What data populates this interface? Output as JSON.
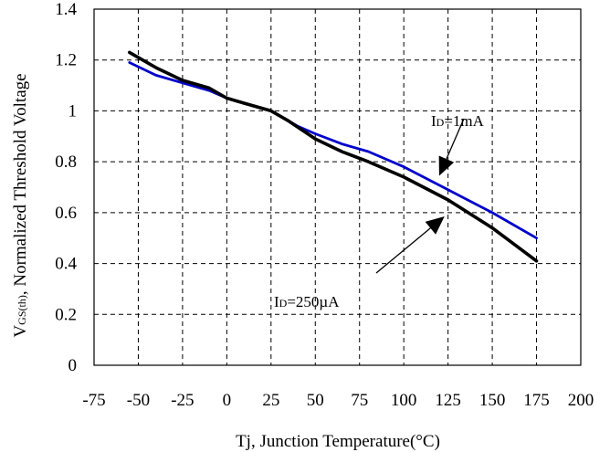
{
  "chart_data": {
    "type": "line",
    "xlabel": "Tj, Junction Temperature(°C)",
    "ylabel": {
      "prefix": "V",
      "sub": "GS(th)",
      "suffix": ", Normalized Threshold Voltage"
    },
    "xlim": [
      -75,
      200
    ],
    "ylim": [
      0,
      1.4
    ],
    "x_ticks": [
      -75,
      -50,
      -25,
      0,
      25,
      50,
      75,
      100,
      125,
      150,
      175,
      200
    ],
    "y_ticks": [
      0,
      0.2,
      0.4,
      0.6,
      0.8,
      1,
      1.2,
      1.4
    ],
    "x_tick_labels": [
      "-75",
      "-50",
      "-25",
      "0",
      "25",
      "50",
      "75",
      "100",
      "125",
      "150",
      "175",
      "200"
    ],
    "y_tick_labels": [
      "0",
      "0.2",
      "0.4",
      "0.6",
      "0.8",
      "1",
      "1.2",
      "1.4"
    ],
    "grid": "dashed",
    "series": [
      {
        "color": "#0000cc",
        "x": [
          -55,
          -40,
          -25,
          -10,
          0,
          10,
          20,
          25,
          40,
          50,
          65,
          80,
          100,
          125,
          150,
          175
        ],
        "y": [
          1.19,
          1.14,
          1.11,
          1.08,
          1.05,
          1.03,
          1.01,
          1.0,
          0.94,
          0.91,
          0.87,
          0.84,
          0.78,
          0.69,
          0.6,
          0.5
        ]
      },
      {
        "color": "#000000",
        "x": [
          -55,
          -40,
          -25,
          -10,
          0,
          10,
          20,
          25,
          35,
          50,
          65,
          80,
          100,
          125,
          150,
          175
        ],
        "y": [
          1.23,
          1.17,
          1.12,
          1.09,
          1.05,
          1.03,
          1.01,
          1.0,
          0.96,
          0.89,
          0.84,
          0.8,
          0.74,
          0.65,
          0.54,
          0.41
        ]
      }
    ],
    "annotations": [
      {
        "id": "id-1ma",
        "prefix": "I",
        "sub": "D",
        "suffix": "=1mA",
        "target": [
          120,
          0.745
        ]
      },
      {
        "id": "id-250ua",
        "prefix": "I",
        "sub": "D",
        "suffix": "=250µA",
        "target": [
          123,
          0.585
        ]
      }
    ]
  }
}
